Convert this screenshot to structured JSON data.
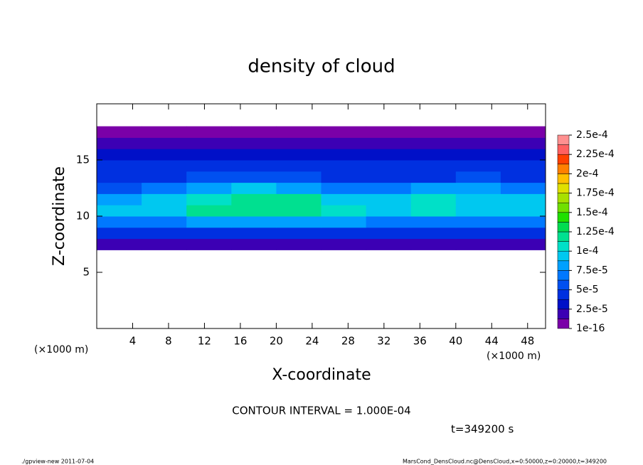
{
  "chart_data": {
    "type": "heatmap",
    "title": "density of cloud",
    "xlabel": "X-coordinate",
    "ylabel": "Z-coordinate",
    "xunit_left": "(×1000 m)",
    "xunit_right": "(×1000 m)",
    "contour_note": "CONTOUR INTERVAL = 1.000E-04",
    "time_note": "t=349200 s",
    "footer_left": "./gpview-new   2011-07-04",
    "footer_right": "MarsCond_DensCloud.nc@DensCloud,x=0:50000,z=0:20000,t=349200",
    "xlim": [
      0,
      50
    ],
    "xticks": [
      4,
      8,
      12,
      16,
      20,
      24,
      28,
      32,
      36,
      40,
      44,
      48
    ],
    "ylim": [
      0,
      20
    ],
    "yticks": [
      5,
      10,
      15
    ],
    "x": [
      2.5,
      7.5,
      12.5,
      17.5,
      22.5,
      27.5,
      32.5,
      37.5,
      42.5,
      47.5
    ],
    "y": [
      7.5,
      8.5,
      9.5,
      10.5,
      11.5,
      12.5,
      13.5,
      14.5,
      15.5,
      16.5,
      17.5
    ],
    "z": [
      [
        1.5e-05,
        1.5e-05,
        1.5e-05,
        1.5e-05,
        1.5e-05,
        1.5e-05,
        1.5e-05,
        1.5e-05,
        1.5e-05,
        1.5e-05
      ],
      [
        4e-05,
        4e-05,
        4.5e-05,
        4.5e-05,
        4.5e-05,
        4e-05,
        4e-05,
        4e-05,
        4e-05,
        4e-05
      ],
      [
        7e-05,
        7.5e-05,
        8e-05,
        8.5e-05,
        8.5e-05,
        8e-05,
        7.5e-05,
        7.5e-05,
        7.5e-05,
        7.5e-05
      ],
      [
        9e-05,
        9.5e-05,
        0.000115,
        0.00012,
        0.00012,
        0.000105,
        9.5e-05,
        0.000105,
        0.0001,
        9.5e-05
      ],
      [
        8e-05,
        9e-05,
        0.00011,
        0.00012,
        0.000115,
        0.0001,
        9e-05,
        0.000105,
        0.0001,
        9e-05
      ],
      [
        6e-05,
        6.5e-05,
        8e-05,
        9e-05,
        8.5e-05,
        7e-05,
        7e-05,
        8e-05,
        8.5e-05,
        7e-05
      ],
      [
        5e-05,
        5e-05,
        5.5e-05,
        5.5e-05,
        5.5e-05,
        5e-05,
        5e-05,
        5e-05,
        5.5e-05,
        5e-05
      ],
      [
        4e-05,
        4e-05,
        4.5e-05,
        4e-05,
        4e-05,
        4e-05,
        4e-05,
        4.5e-05,
        4e-05,
        4e-05
      ],
      [
        3e-05,
        3e-05,
        3e-05,
        3e-05,
        3e-05,
        3e-05,
        3e-05,
        3e-05,
        3e-05,
        3e-05
      ],
      [
        1.5e-05,
        1.5e-05,
        1.5e-05,
        1.5e-05,
        1.5e-05,
        1.5e-05,
        1.5e-05,
        1.5e-05,
        1.5e-05,
        1.5e-05
      ],
      [
        5e-06,
        5e-06,
        5e-06,
        5e-06,
        5e-06,
        5e-06,
        5e-06,
        5e-06,
        5e-06,
        5e-06
      ]
    ],
    "zlim": [
      1e-16,
      0.00025
    ],
    "zticks": [
      {
        "value": 1e-16,
        "label": "1e-16"
      },
      {
        "value": 2.5e-05,
        "label": "2.5e-5"
      },
      {
        "value": 5e-05,
        "label": "5e-5"
      },
      {
        "value": 7.5e-05,
        "label": "7.5e-5"
      },
      {
        "value": 0.0001,
        "label": "1e-4"
      },
      {
        "value": 0.000125,
        "label": "1.25e-4"
      },
      {
        "value": 0.00015,
        "label": "1.5e-4"
      },
      {
        "value": 0.000175,
        "label": "1.75e-4"
      },
      {
        "value": 0.0002,
        "label": "2e-4"
      },
      {
        "value": 0.000225,
        "label": "2.25e-4"
      },
      {
        "value": 0.00025,
        "label": "2.5e-4"
      }
    ],
    "colors": [
      "#7a00a8",
      "#3c00b4",
      "#0010c8",
      "#0030e0",
      "#0050f0",
      "#0078ff",
      "#00a0ff",
      "#00c8f0",
      "#00e0c8",
      "#00e090",
      "#00dc50",
      "#20e000",
      "#70e000",
      "#a8e000",
      "#e0e000",
      "#ffc000",
      "#ff8000",
      "#ff4000",
      "#ff6060",
      "#ff9090"
    ]
  }
}
